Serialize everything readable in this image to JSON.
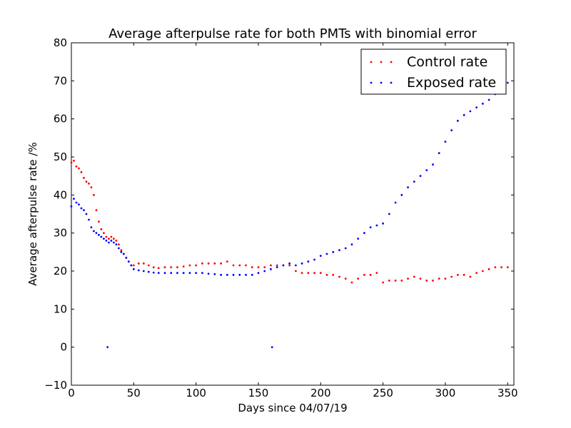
{
  "chart_data": {
    "type": "scatter",
    "title": "Average afterpulse rate for both PMTs with binomial error",
    "xlabel": "Days since 04/07/19",
    "ylabel": "Average afterpulse rate /%",
    "xlim": [
      0,
      355
    ],
    "ylim": [
      -10,
      80
    ],
    "xticks": [
      0,
      50,
      100,
      150,
      200,
      250,
      300,
      350
    ],
    "yticks": [
      -10,
      0,
      10,
      20,
      30,
      40,
      50,
      60,
      70,
      80
    ],
    "xtick_labels": [
      "0",
      "50",
      "100",
      "150",
      "200",
      "250",
      "300",
      "350"
    ],
    "ytick_labels": [
      "−10",
      "0",
      "10",
      "20",
      "30",
      "40",
      "50",
      "60",
      "70",
      "80"
    ],
    "legend_position": "top-right",
    "grid": false,
    "series": [
      {
        "name": "Control rate",
        "color": "#ff0000",
        "x": [
          0,
          2,
          4,
          6,
          8,
          10,
          12,
          14,
          16,
          18,
          20,
          22,
          24,
          26,
          28,
          30,
          32,
          34,
          36,
          38,
          40,
          42,
          44,
          46,
          48,
          50,
          54,
          58,
          62,
          66,
          70,
          75,
          80,
          85,
          90,
          95,
          100,
          105,
          110,
          115,
          120,
          125,
          130,
          135,
          140,
          145,
          150,
          155,
          160,
          165,
          170,
          175,
          180,
          185,
          190,
          195,
          200,
          205,
          210,
          215,
          220,
          225,
          230,
          235,
          240,
          245,
          250,
          255,
          260,
          265,
          270,
          275,
          280,
          285,
          290,
          295,
          300,
          305,
          310,
          315,
          320,
          325,
          330,
          335,
          340,
          345,
          350
        ],
        "y": [
          48.5,
          49,
          47.5,
          47,
          46,
          44.5,
          43.5,
          43,
          42,
          40,
          36,
          33,
          31,
          30,
          29,
          28.5,
          29,
          28.5,
          28,
          27,
          25.5,
          24.5,
          23.5,
          22.5,
          21.5,
          21.5,
          22,
          22,
          21.5,
          21,
          20.8,
          21,
          21,
          21,
          21.2,
          21.5,
          21.5,
          22,
          22,
          22,
          22,
          22.5,
          21.5,
          21.5,
          21.5,
          21,
          21,
          21,
          21.5,
          21.5,
          21.5,
          21.5,
          20,
          19.5,
          19.5,
          19.5,
          19.5,
          19,
          19,
          18.5,
          18,
          17,
          18,
          19,
          19,
          19.5,
          17,
          17.5,
          17.5,
          17.5,
          18,
          18.5,
          18,
          17.5,
          17.5,
          18,
          18,
          18.5,
          19,
          19,
          18.5,
          19.5,
          20,
          20.5,
          21,
          21,
          21
        ]
      },
      {
        "name": "Exposed rate",
        "color": "#0000ff",
        "x": [
          0,
          2,
          4,
          6,
          8,
          10,
          12,
          14,
          16,
          18,
          20,
          22,
          24,
          26,
          28,
          29,
          30,
          32,
          34,
          36,
          38,
          40,
          42,
          44,
          46,
          48,
          50,
          54,
          58,
          62,
          66,
          70,
          75,
          80,
          85,
          90,
          95,
          100,
          105,
          110,
          115,
          120,
          125,
          130,
          135,
          140,
          145,
          150,
          155,
          160,
          161,
          165,
          170,
          175,
          180,
          185,
          190,
          195,
          200,
          205,
          210,
          215,
          220,
          225,
          230,
          235,
          240,
          245,
          250,
          255,
          260,
          265,
          270,
          275,
          280,
          285,
          290,
          295,
          300,
          305,
          310,
          315,
          320,
          325,
          330,
          335,
          340,
          345,
          350
        ],
        "y": [
          37,
          39,
          38,
          37.5,
          36.5,
          36,
          35,
          33.5,
          31.5,
          30.5,
          30,
          29.5,
          29,
          28.5,
          28,
          0,
          27.5,
          28,
          27.5,
          27,
          26,
          25,
          24.5,
          23.5,
          22.5,
          21.5,
          20.5,
          20.2,
          20,
          19.8,
          19.6,
          19.5,
          19.5,
          19.5,
          19.5,
          19.5,
          19.5,
          19.5,
          19.5,
          19.3,
          19.2,
          19,
          19,
          19,
          19,
          19,
          19,
          19.5,
          20,
          20.5,
          0,
          21,
          21.5,
          22,
          21.5,
          22,
          22.5,
          23,
          24,
          24.5,
          25,
          25.5,
          26,
          27,
          28.5,
          30,
          31.5,
          32,
          32.5,
          35,
          38,
          40,
          42,
          43.5,
          45,
          46.5,
          48,
          51,
          54,
          57,
          59.5,
          61,
          62,
          63,
          64,
          65,
          66.5,
          67.5,
          69.5
        ]
      }
    ]
  }
}
